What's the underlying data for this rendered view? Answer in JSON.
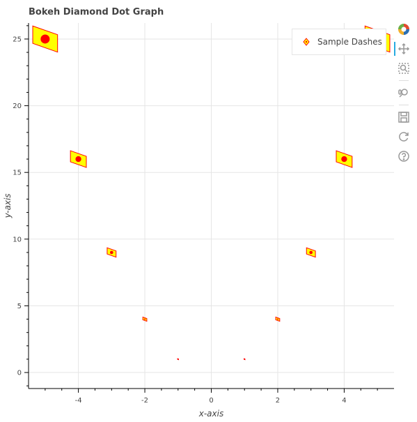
{
  "chart_data": {
    "type": "scatter",
    "marker": "diamond_dash",
    "title": "Bokeh Diamond Dot Graph",
    "xlabel": "x-axis",
    "ylabel": "y-axis",
    "xlim": [
      -5.5,
      5.5
    ],
    "ylim": [
      -1.2,
      26.2
    ],
    "x_ticks": [
      -4,
      -2,
      0,
      2,
      4
    ],
    "y_ticks": [
      0,
      5,
      10,
      15,
      20,
      25
    ],
    "grid": true,
    "legend_position": "top-right",
    "series": [
      {
        "name": "Sample Dashes",
        "x": [
          -5,
          -4,
          -3,
          -2,
          -1,
          1,
          2,
          3,
          4,
          5
        ],
        "y": [
          25,
          16,
          9,
          4,
          1,
          1,
          4,
          9,
          16,
          25
        ],
        "size": [
          25,
          16,
          9,
          4,
          1,
          1,
          4,
          9,
          16,
          25
        ],
        "fill_color": "#ffff00",
        "line_color": "#ff0000"
      }
    ]
  },
  "toolbar": {
    "tools": [
      {
        "name": "bokeh-logo-icon"
      },
      {
        "name": "pan-icon"
      },
      {
        "name": "box-zoom-icon"
      },
      {
        "name": "wheel-zoom-icon"
      },
      {
        "name": "save-icon"
      },
      {
        "name": "reset-icon"
      },
      {
        "name": "help-icon"
      }
    ]
  }
}
